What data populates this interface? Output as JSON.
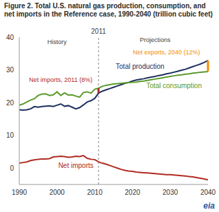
{
  "chart_data": {
    "type": "line",
    "title": "Figure 2. Total U.S. natural gas production, consumption, and net imports in the Reference case, 1990-2040 (trillion cubic feet)",
    "x": [
      1990,
      1991,
      1992,
      1993,
      1994,
      1995,
      1996,
      1997,
      1998,
      1999,
      2000,
      2001,
      2002,
      2003,
      2004,
      2005,
      2006,
      2007,
      2008,
      2009,
      2010,
      2011,
      2012,
      2013,
      2014,
      2015,
      2016,
      2017,
      2018,
      2019,
      2020,
      2021,
      2022,
      2023,
      2024,
      2025,
      2026,
      2027,
      2028,
      2029,
      2030,
      2031,
      2032,
      2033,
      2034,
      2035,
      2036,
      2037,
      2038,
      2039,
      2040
    ],
    "series": [
      {
        "name": "Total production",
        "color": "#1c2f5e",
        "label_position": [
          2022,
          31
        ],
        "values": [
          17.8,
          17.7,
          17.8,
          18.1,
          18.8,
          18.6,
          18.8,
          18.9,
          19.0,
          18.8,
          19.2,
          19.6,
          18.9,
          19.1,
          18.6,
          18.1,
          18.5,
          19.3,
          20.2,
          20.6,
          21.3,
          22.9,
          23.5,
          23.9,
          24.3,
          24.7,
          25.1,
          25.5,
          25.9,
          26.2,
          26.6,
          26.9,
          27.1,
          27.3,
          27.6,
          27.8,
          28.0,
          28.3,
          28.5,
          28.8,
          29.0,
          29.3,
          29.6,
          29.9,
          30.2,
          30.6,
          31.0,
          31.4,
          31.8,
          32.3,
          32.9
        ]
      },
      {
        "name": "Total consumption",
        "color": "#5a9a2c",
        "label_position": [
          2031,
          25.2
        ],
        "values": [
          19.2,
          19.6,
          20.2,
          20.8,
          21.2,
          22.2,
          22.6,
          22.7,
          22.2,
          22.4,
          23.3,
          22.2,
          23.0,
          22.3,
          22.4,
          22.0,
          21.7,
          23.1,
          23.3,
          22.9,
          24.1,
          24.4,
          25.0,
          25.3,
          25.5,
          25.7,
          25.8,
          25.9,
          26.0,
          26.1,
          26.2,
          26.3,
          26.5,
          26.6,
          26.8,
          27.0,
          27.2,
          27.4,
          27.6,
          27.8,
          28.0,
          28.2,
          28.4,
          28.5,
          28.7,
          28.8,
          29.0,
          29.1,
          29.3,
          29.4,
          29.5
        ]
      },
      {
        "name": "Net imports",
        "color": "#b02a22",
        "label_position": [
          2005,
          0.8
        ],
        "values": [
          1.5,
          1.7,
          1.9,
          2.3,
          2.5,
          2.7,
          2.8,
          2.8,
          2.9,
          3.4,
          3.5,
          3.6,
          3.5,
          3.3,
          3.4,
          3.6,
          3.5,
          3.8,
          3.0,
          2.7,
          2.6,
          1.9,
          1.5,
          1.2,
          0.8,
          0.4,
          0.0,
          -0.4,
          -0.7,
          -0.9,
          -1.0,
          -1.2,
          -1.3,
          -1.4,
          -1.5,
          -1.6,
          -1.7,
          -1.8,
          -1.9,
          -2.0,
          -2.0,
          -2.1,
          -2.2,
          -2.3,
          -2.4,
          -2.6,
          -2.7,
          -2.9,
          -3.1,
          -3.3,
          -3.6
        ]
      }
    ],
    "xlim": [
      1990,
      2040
    ],
    "xticks": [
      1990,
      2000,
      2010,
      2020,
      2030,
      2040
    ],
    "ylim": [
      -5,
      40
    ],
    "yticks": [
      0,
      10,
      20,
      30,
      40
    ],
    "grid": false,
    "reference_line": {
      "x": 2011,
      "label": "2011",
      "color": "#808080"
    },
    "annotations": [
      {
        "text": "History",
        "x": 2000,
        "y": 38.5,
        "color": "#404040"
      },
      {
        "text": "Projections",
        "x": 2026,
        "y": 39.3,
        "color": "#404040"
      },
      {
        "text": "Net exports, 2040 (12%)",
        "x": 2029,
        "y": 35.5,
        "color": "#f28c00"
      },
      {
        "text": "Net imports, 2011 (8%)",
        "x": 2001,
        "y": 27,
        "color": "#b02a22"
      }
    ],
    "brackets": [
      {
        "x": 2011,
        "between": [
          "Total production",
          "Total consumption"
        ],
        "color": "#b02a22"
      },
      {
        "x": 2040,
        "between": [
          "Total production",
          "Total consumption"
        ],
        "color": "#f28c00"
      }
    ],
    "logo": "eia"
  }
}
